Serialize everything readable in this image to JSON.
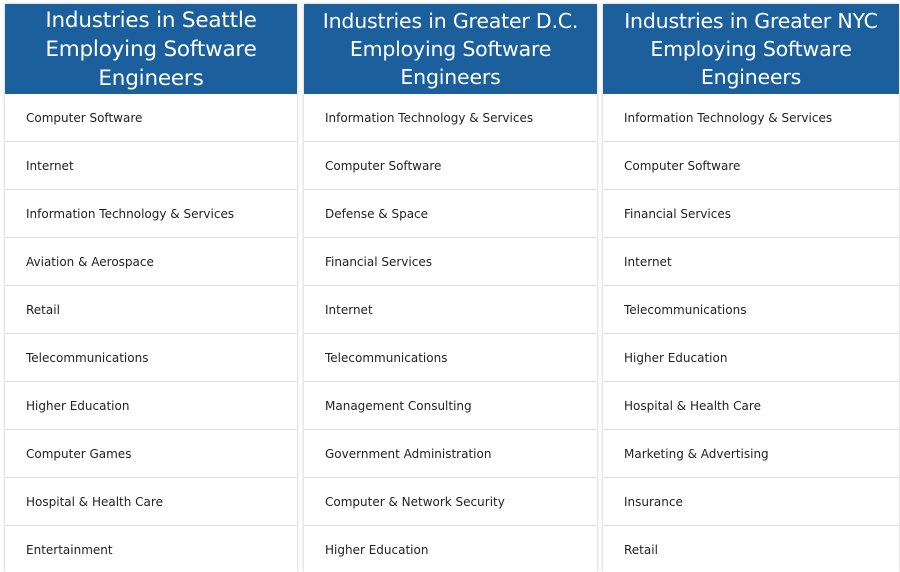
{
  "colors": {
    "header_bg": "#1b5f9c",
    "header_text": "#ffffff",
    "row_divider": "#e3e3e3",
    "row_text": "#222222"
  },
  "panels": [
    {
      "title": "Industries in Seattle Employing Software Engineers",
      "industries": [
        "Computer Software",
        "Internet",
        "Information Technology & Services",
        "Aviation & Aerospace",
        "Retail",
        "Telecommunications",
        "Higher Education",
        "Computer Games",
        "Hospital & Health Care",
        "Entertainment"
      ]
    },
    {
      "title": "Industries in Greater D.C. Employing Software Engineers",
      "industries": [
        "Information Technology & Services",
        "Computer Software",
        "Defense & Space",
        "Financial Services",
        "Internet",
        "Telecommunications",
        "Management Consulting",
        "Government Administration",
        "Computer & Network Security",
        "Higher Education"
      ]
    },
    {
      "title": "Industries in Greater NYC Employing Software Engineers",
      "industries": [
        "Information Technology & Services",
        "Computer Software",
        "Financial Services",
        "Internet",
        "Telecommunications",
        "Higher Education",
        "Hospital & Health Care",
        "Marketing & Advertising",
        "Insurance",
        "Retail"
      ]
    }
  ]
}
